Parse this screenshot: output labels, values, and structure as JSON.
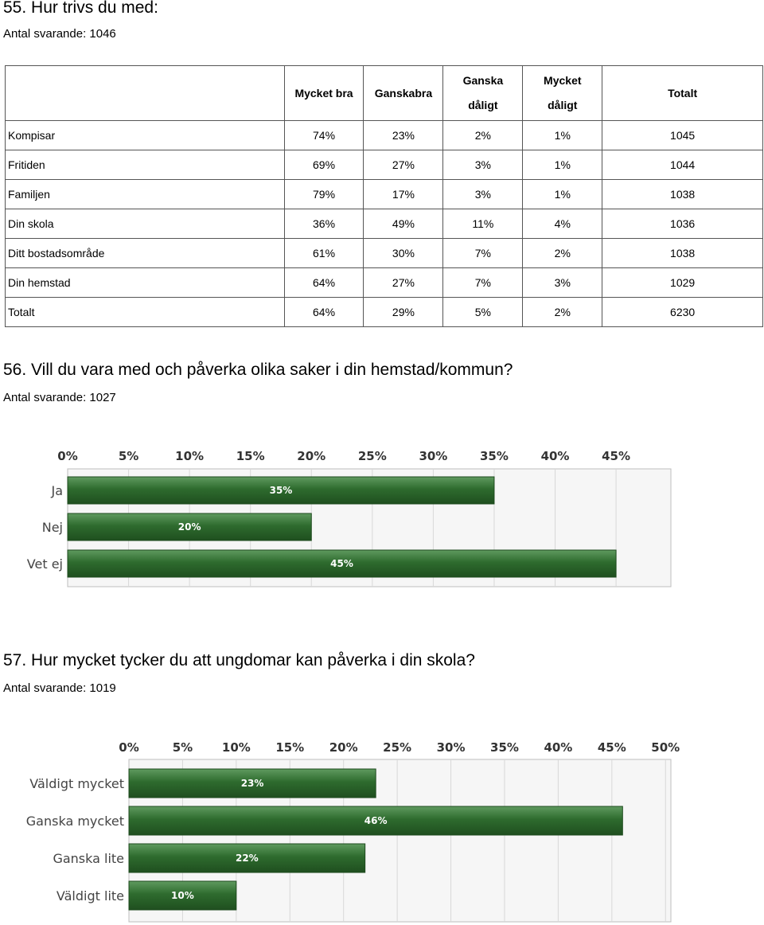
{
  "q55": {
    "title": "55. Hur trivs du med:",
    "count": "Antal svarande: 1046",
    "headers": [
      "Mycket bra",
      "Ganskabra",
      "Ganska",
      "dåligt",
      "Mycket",
      "dåligt",
      "Totalt"
    ],
    "rows": [
      {
        "label": "Kompisar",
        "v": [
          "74%",
          "23%",
          "2%",
          "1%",
          "1045"
        ]
      },
      {
        "label": "Fritiden",
        "v": [
          "69%",
          "27%",
          "3%",
          "1%",
          "1044"
        ]
      },
      {
        "label": "Familjen",
        "v": [
          "79%",
          "17%",
          "3%",
          "1%",
          "1038"
        ]
      },
      {
        "label": "Din skola",
        "v": [
          "36%",
          "49%",
          "11%",
          "4%",
          "1036"
        ]
      },
      {
        "label": "Ditt bostadsområde",
        "v": [
          "61%",
          "30%",
          "7%",
          "2%",
          "1038"
        ]
      },
      {
        "label": "Din hemstad",
        "v": [
          "64%",
          "27%",
          "7%",
          "3%",
          "1029"
        ]
      },
      {
        "label": "Totalt",
        "v": [
          "64%",
          "29%",
          "5%",
          "2%",
          "6230"
        ]
      }
    ]
  },
  "q56": {
    "title": "56. Vill du vara med och påverka olika saker i din hemstad/kommun?",
    "count": "Antal svarande: 1027"
  },
  "q57": {
    "title": "57. Hur mycket tycker du att ungdomar kan påverka i din skola?",
    "count": "Antal svarande: 1019"
  },
  "chart_data": [
    {
      "type": "bar",
      "orientation": "horizontal",
      "categories": [
        "Ja",
        "Nej",
        "Vet ej"
      ],
      "values": [
        35,
        20,
        45
      ],
      "data_labels": [
        "35%",
        "20%",
        "45%"
      ],
      "xticks": [
        "0%",
        "5%",
        "10%",
        "15%",
        "20%",
        "25%",
        "30%",
        "35%",
        "40%",
        "45%"
      ],
      "xlim": [
        0,
        49.5
      ],
      "grid": true,
      "bar_color": "#2e6b2e"
    },
    {
      "type": "bar",
      "orientation": "horizontal",
      "categories": [
        "Väldigt mycket",
        "Ganska mycket",
        "Ganska lite",
        "Väldigt lite"
      ],
      "values": [
        23,
        46,
        22,
        10
      ],
      "data_labels": [
        "23%",
        "46%",
        "22%",
        "10%"
      ],
      "xticks": [
        "0%",
        "5%",
        "10%",
        "15%",
        "20%",
        "25%",
        "30%",
        "35%",
        "40%",
        "45%",
        "50%"
      ],
      "xlim": [
        0,
        50.5
      ],
      "grid": true,
      "bar_color": "#2e6b2e"
    }
  ]
}
